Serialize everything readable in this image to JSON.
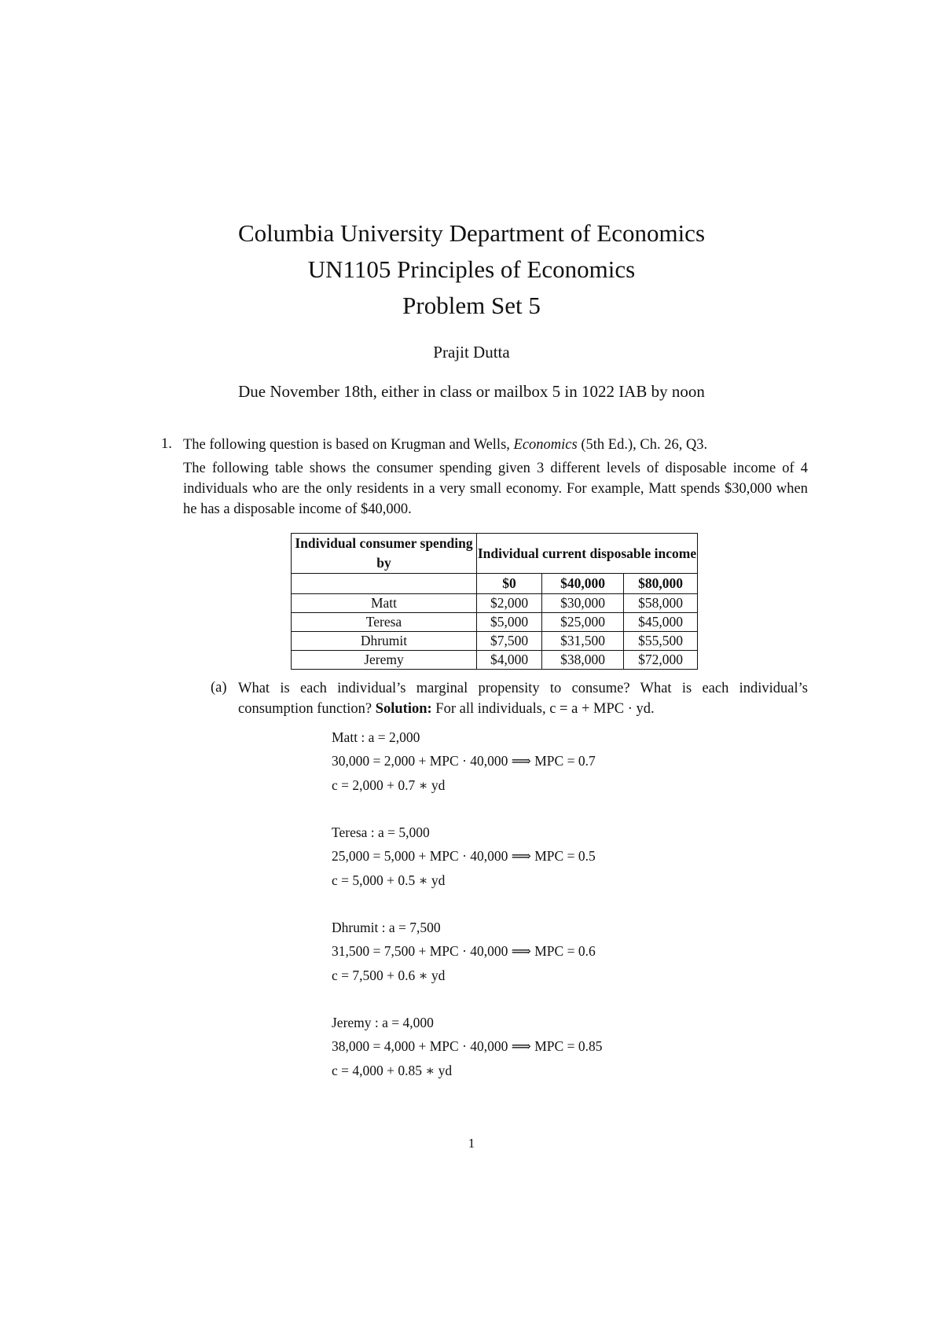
{
  "header": {
    "title_lines": [
      "Columbia University Department of Economics",
      "UN1105 Principles of Economics",
      "Problem Set 5"
    ],
    "author": "Prajit Dutta",
    "due": "Due November 18th, either in class or mailbox 5 in 1022 IAB by noon"
  },
  "question1": {
    "number": "1.",
    "intro_before": "The following question is based on Krugman and Wells, ",
    "intro_italic": "Economics",
    "intro_after": " (5th Ed.), Ch. 26, Q3.",
    "paragraph": "The following table shows the consumer spending given 3 different levels of disposable income of 4 individuals who are the only residents in a very small economy. For example, Matt spends $30,000 when he has a disposable income of $40,000.",
    "table": {
      "header_left": "Individual consumer spending by",
      "header_right": "Individual current disposable income",
      "income_levels": [
        "$0",
        "$40,000",
        "$80,000"
      ],
      "rows": [
        {
          "name": "Matt",
          "values": [
            "$2,000",
            "$30,000",
            "$58,000"
          ]
        },
        {
          "name": "Teresa",
          "values": [
            "$5,000",
            "$25,000",
            "$45,000"
          ]
        },
        {
          "name": "Dhrumit",
          "values": [
            "$7,500",
            "$31,500",
            "$55,500"
          ]
        },
        {
          "name": "Jeremy",
          "values": [
            "$4,000",
            "$38,000",
            "$72,000"
          ]
        }
      ]
    },
    "part_a": {
      "label": "(a)",
      "question": "What is each individual’s marginal propensity to consume? What is each individual’s consumption function?",
      "solution_label": "Solution:",
      "solution_text": "For all individuals, c = a + MPC · yd.",
      "blocks": [
        [
          "Matt : a = 2,000",
          "30,000 = 2,000 + MPC · 40,000  ⟹  MPC = 0.7",
          "c = 2,000 + 0.7 ∗ yd"
        ],
        [
          "Teresa : a = 5,000",
          "25,000 = 5,000 + MPC · 40,000  ⟹  MPC = 0.5",
          "c = 5,000 + 0.5 ∗ yd"
        ],
        [
          "Dhrumit : a = 7,500",
          "31,500 = 7,500 + MPC · 40,000  ⟹  MPC = 0.6",
          "c = 7,500 + 0.6 ∗ yd"
        ],
        [
          "Jeremy : a = 4,000",
          "38,000 = 4,000 + MPC · 40,000  ⟹  MPC = 0.85",
          "c = 4,000 + 0.85 ∗ yd"
        ]
      ]
    }
  },
  "page_number": "1"
}
